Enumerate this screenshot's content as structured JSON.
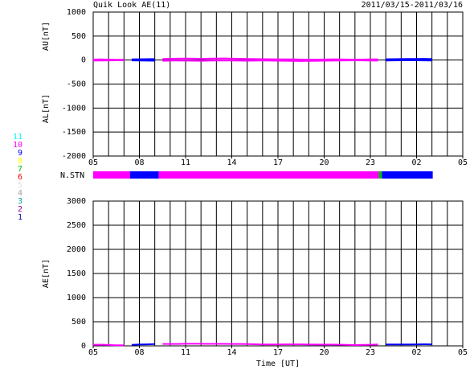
{
  "header": {
    "title": "Quik Look AE(11)",
    "date_range": "2011/03/15-2011/03/16"
  },
  "stations": {
    "label": "N.STN",
    "levels": [
      1,
      2,
      3,
      4,
      5,
      6,
      7,
      8,
      9,
      10,
      11
    ],
    "colors": [
      "#0000a0",
      "#a000a0",
      "#00a0a0",
      "#a0a0a0",
      "#e0e0e0",
      "#ff0000",
      "#00c000",
      "#ffff00",
      "#0000ff",
      "#ff00ff",
      "#00ffff"
    ],
    "segments": [
      {
        "start": 5,
        "end": 7.4,
        "count": 10
      },
      {
        "start": 7.4,
        "end": 9.25,
        "count": 9
      },
      {
        "start": 9.25,
        "end": 23.55,
        "count": 10
      },
      {
        "start": 23.55,
        "end": 23.75,
        "count": 7
      },
      {
        "start": 23.75,
        "end": 27.05,
        "count": 9
      }
    ]
  },
  "chart_data": [
    {
      "type": "line",
      "ylabel_top": "AU[nT]",
      "ylabel_bottom": "AL[nT]",
      "x": [
        5,
        5.5,
        6,
        6.5,
        7,
        7.5,
        8,
        8.5,
        9,
        9.5,
        10,
        10.5,
        11,
        11.5,
        12,
        12.5,
        13,
        13.5,
        14,
        14.5,
        15,
        15.5,
        16,
        16.5,
        17,
        17.5,
        18,
        18.5,
        19,
        19.5,
        20,
        20.5,
        21,
        21.5,
        22,
        22.5,
        23,
        23.5,
        24,
        24.5,
        25,
        25.5,
        26,
        26.5,
        27
      ],
      "series": [
        {
          "name": "AU",
          "values": [
            12,
            15,
            10,
            8,
            6,
            14,
            18,
            20,
            22,
            25,
            28,
            30,
            32,
            30,
            28,
            30,
            32,
            34,
            30,
            28,
            25,
            22,
            20,
            18,
            16,
            15,
            14,
            12,
            10,
            10,
            12,
            14,
            15,
            12,
            10,
            12,
            14,
            16,
            18,
            20,
            22,
            24,
            25,
            26,
            22
          ]
        },
        {
          "name": "AL",
          "values": [
            -12,
            -10,
            -8,
            -6,
            -5,
            -8,
            -10,
            -12,
            -14,
            -15,
            -12,
            -10,
            -12,
            -14,
            -15,
            -12,
            -10,
            -8,
            -10,
            -12,
            -14,
            -12,
            -10,
            -12,
            -14,
            -16,
            -18,
            -20,
            -18,
            -16,
            -14,
            -12,
            -10,
            -8,
            -6,
            -8,
            -10,
            -12,
            -10,
            -8,
            -6,
            -5,
            -6,
            -8,
            -10
          ]
        }
      ],
      "xlim": [
        5,
        29
      ],
      "xticks": [
        {
          "value": 5,
          "label": "05"
        },
        {
          "value": 8,
          "label": "08"
        },
        11,
        14,
        17,
        20,
        23,
        {
          "value": 26,
          "label": "02"
        },
        {
          "value": 29,
          "label": "05"
        }
      ],
      "x_grid_step": 1,
      "ylim": [
        -2000,
        1000
      ],
      "yticks": [
        -2000,
        -1500,
        -1000,
        -500,
        0,
        500,
        1000
      ],
      "grid": true
    },
    {
      "type": "line",
      "ylabel": "AE[nT]",
      "xlabel": "Time [UT]",
      "x": [
        5,
        5.5,
        6,
        6.5,
        7,
        7.5,
        8,
        8.5,
        9,
        9.5,
        10,
        10.5,
        11,
        11.5,
        12,
        12.5,
        13,
        13.5,
        14,
        14.5,
        15,
        15.5,
        16,
        16.5,
        17,
        17.5,
        18,
        18.5,
        19,
        19.5,
        20,
        20.5,
        21,
        21.5,
        22,
        22.5,
        23,
        23.5,
        24,
        24.5,
        25,
        25.5,
        26,
        26.5,
        27
      ],
      "series": [
        {
          "name": "AE",
          "values": [
            24,
            25,
            18,
            14,
            11,
            22,
            28,
            32,
            36,
            40,
            40,
            40,
            44,
            44,
            43,
            42,
            42,
            42,
            40,
            40,
            39,
            34,
            30,
            30,
            30,
            31,
            32,
            32,
            28,
            26,
            26,
            26,
            25,
            20,
            16,
            20,
            24,
            28,
            28,
            28,
            28,
            29,
            31,
            34,
            32
          ]
        }
      ],
      "xlim": [
        5,
        29
      ],
      "xticks": [
        {
          "value": 5,
          "label": "05"
        },
        {
          "value": 8,
          "label": "08"
        },
        11,
        14,
        17,
        20,
        23,
        {
          "value": 26,
          "label": "02"
        },
        {
          "value": 29,
          "label": "05"
        }
      ],
      "x_grid_step": 1,
      "ylim": [
        0,
        3000
      ],
      "yticks": [
        0,
        500,
        1000,
        1500,
        2000,
        2500,
        3000
      ],
      "grid": true
    }
  ]
}
